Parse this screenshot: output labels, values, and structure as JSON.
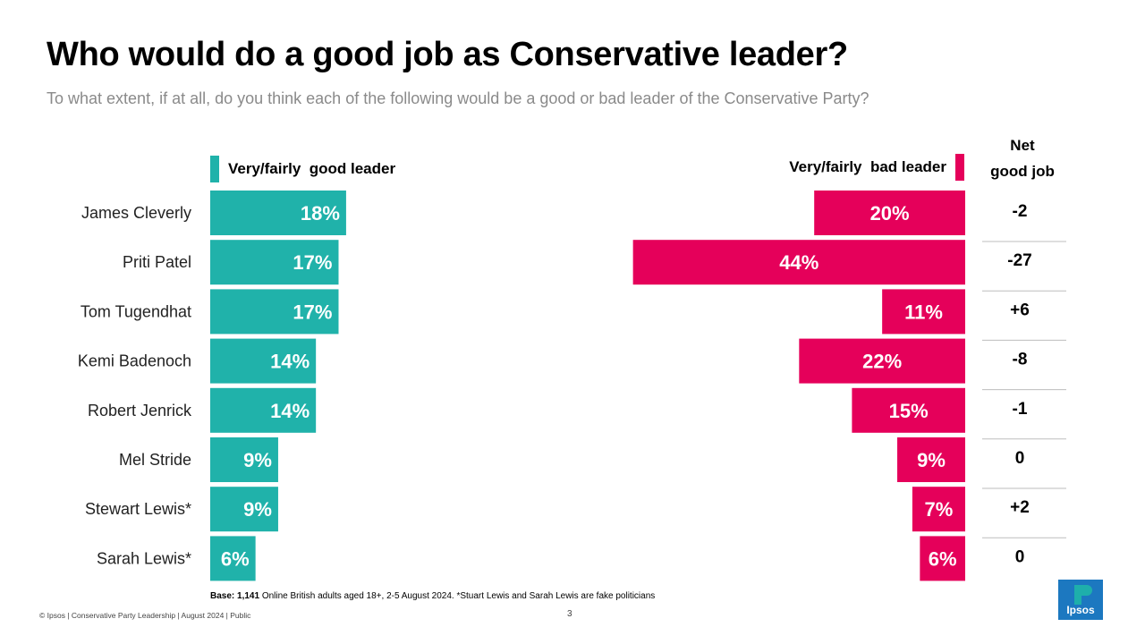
{
  "title": "Who would do a good job as Conservative leader?",
  "subtitle": "To what extent, if at all, do you think each of the following would be a good or bad leader of the Conservative Party?",
  "colors": {
    "good": "#20b2aa",
    "bad": "#e5005a"
  },
  "chart_data": {
    "type": "bar",
    "title": "Who would do a good job as Conservative leader?",
    "categories": [
      "James Cleverly",
      "Priti Patel",
      "Tom Tugendhat",
      "Kemi Badenoch",
      "Robert Jenrick",
      "Mel Stride",
      "Stewart Lewis*",
      "Sarah Lewis*"
    ],
    "series": [
      {
        "name": "Very/fairly  good leader",
        "values": [
          18,
          17,
          17,
          14,
          14,
          9,
          9,
          6
        ],
        "labels": [
          "18%",
          "17%",
          "17%",
          "14%",
          "14%",
          "9%",
          "9%",
          "6%"
        ]
      },
      {
        "name": "Very/fairly  bad leader",
        "values": [
          20,
          44,
          11,
          22,
          15,
          9,
          7,
          6
        ],
        "labels": [
          "20%",
          "44%",
          "11%",
          "22%",
          "15%",
          "9%",
          "7%",
          "6%"
        ]
      }
    ],
    "net_header": [
      "Net",
      "good job"
    ],
    "net": [
      "-2",
      "-27",
      "+6",
      "-8",
      "-1",
      "0",
      "+2",
      "0"
    ],
    "xlim": [
      0,
      44
    ]
  },
  "base_label": "Base: 1,141",
  "base_text": " Online British adults aged 18+, 2-5 August 2024. *Stuart Lewis and Sarah Lewis are fake politicians",
  "footer": "© Ipsos | Conservative  Party Leadership | August 2024 | Public",
  "page_number": "3",
  "logo_text": "Ipsos"
}
